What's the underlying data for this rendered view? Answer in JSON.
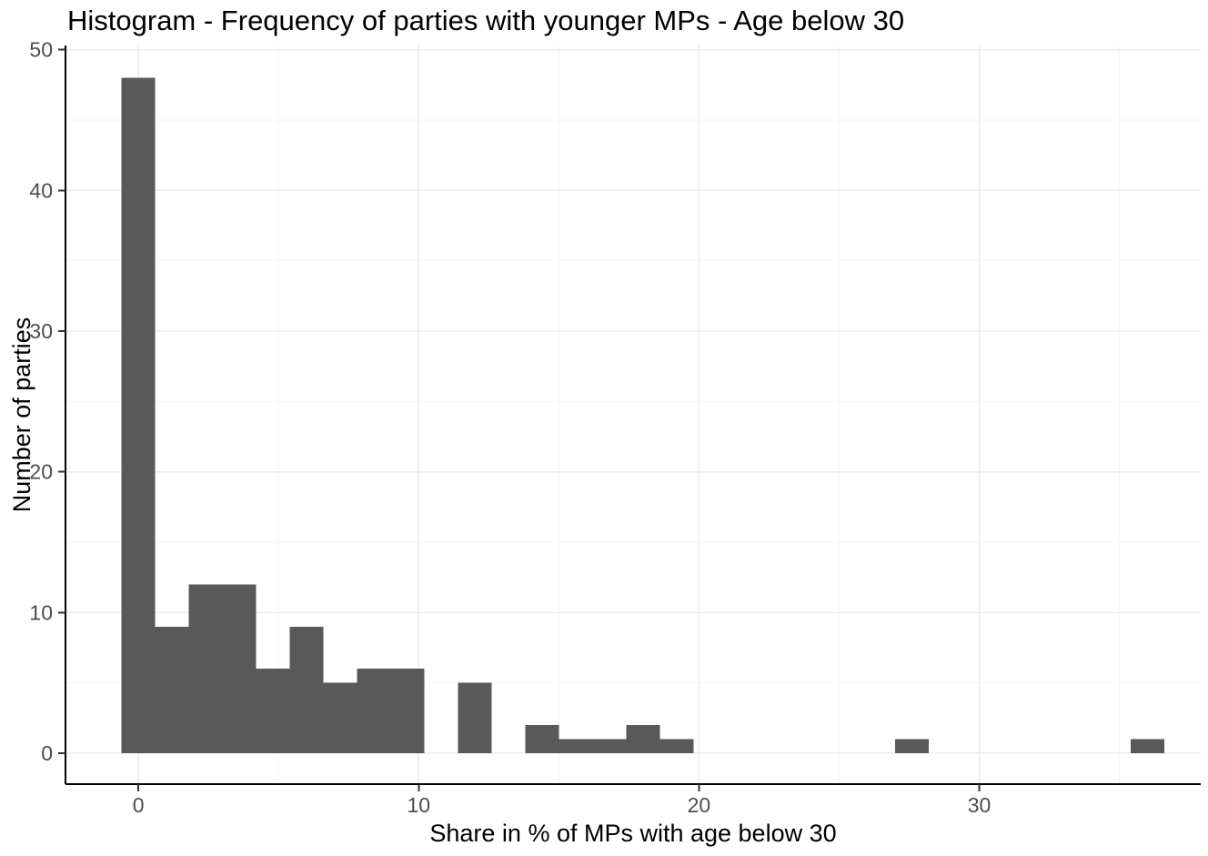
{
  "chart_data": {
    "type": "bar",
    "kind": "histogram",
    "title": "Histogram - Frequency of parties with younger MPs - Age below 30",
    "xlabel": "Share in % of MPs with age below 30",
    "ylabel": "Number of parties",
    "bin_width": 1.2,
    "bin_centers": [
      0,
      1.2,
      2.4,
      3.6,
      4.8,
      6,
      7.2,
      8.4,
      9.6,
      10.8,
      12,
      13.2,
      14.4,
      15.6,
      16.8,
      18,
      19.2,
      20.4,
      21.6,
      22.8,
      24,
      25.2,
      26.4,
      27.6,
      28.8,
      30,
      31.2,
      32.4,
      33.6,
      34.8,
      36
    ],
    "counts": [
      48,
      9,
      12,
      12,
      6,
      9,
      5,
      6,
      6,
      0,
      5,
      0,
      2,
      1,
      1,
      2,
      1,
      0,
      0,
      0,
      0,
      0,
      0,
      1,
      0,
      0,
      0,
      0,
      0,
      0,
      1
    ],
    "x_ticks": [
      0,
      10,
      20,
      30
    ],
    "y_ticks": [
      0,
      10,
      20,
      30,
      40,
      50
    ],
    "x_minor_ticks": [
      5,
      15,
      25,
      35
    ],
    "y_minor_ticks": [
      5,
      15,
      25,
      35,
      45
    ],
    "xlim": [
      -2.6,
      37.9
    ],
    "ylim": [
      -2.2,
      50.3
    ],
    "grid": "major and minor gridlines on white panel",
    "legend": "none",
    "colors": {
      "bar": "#595959",
      "grid_major": "#ebebeb",
      "grid_minor": "#f6f6f6",
      "axis_line": "#000000",
      "tick_mark": "#333333",
      "tick_label": "#4d4d4d",
      "title_text": "#000000"
    }
  }
}
